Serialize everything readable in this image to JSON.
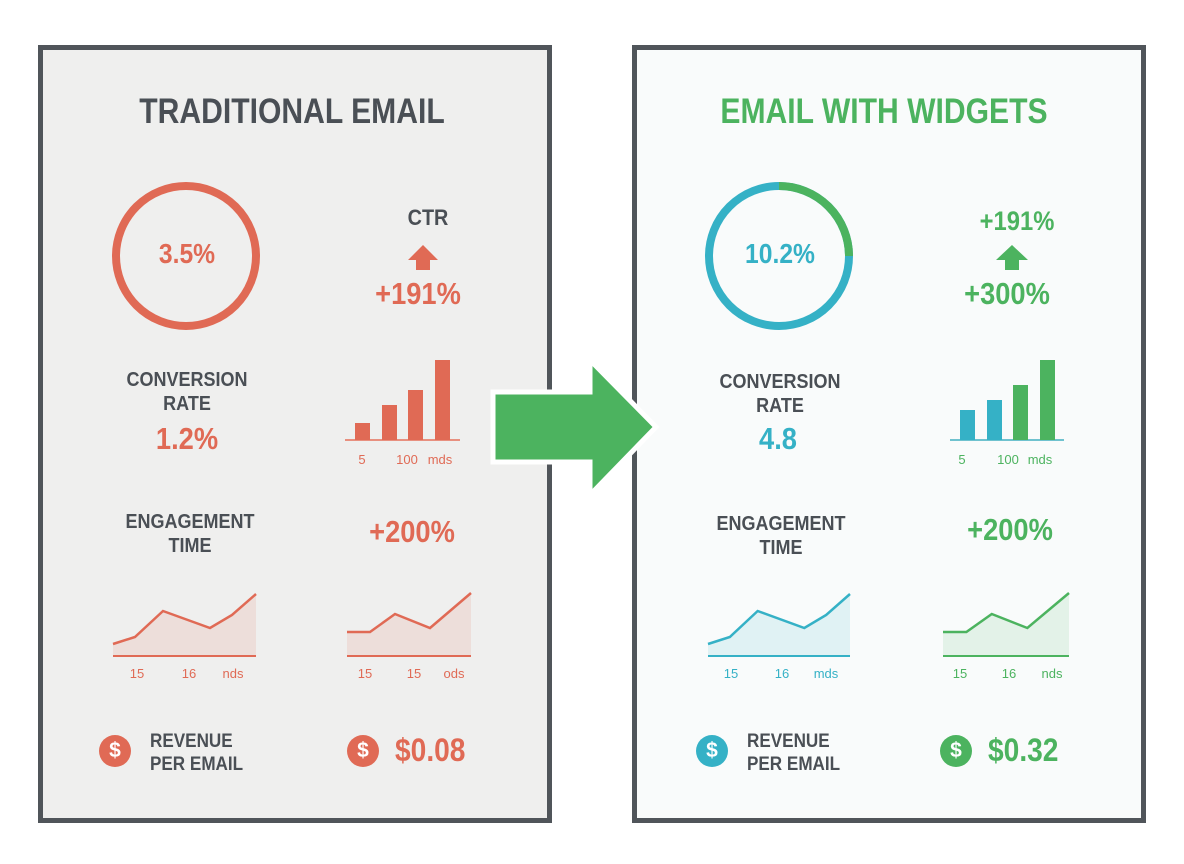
{
  "colors": {
    "red": "#e06a55",
    "teal": "#35b1c6",
    "green": "#4cb35f",
    "dark": "#4a4f55"
  },
  "left": {
    "title": "TRADITIONAL EMAIL",
    "ring_value": "3.5%",
    "ctr_label": "CTR",
    "ctr_change": "+191%",
    "conversion_label": [
      "CONVERSION",
      "RATE"
    ],
    "conversion_value": "1.2%",
    "engagement_label": [
      "ENGAGEMENT",
      "TIME"
    ],
    "engagement_change": "+200%",
    "revenue_label": [
      "REVENUE",
      "PER EMAIL"
    ],
    "revenue_value": "$0.08"
  },
  "right": {
    "title": "EMAIL WITH WIDGETS",
    "ring_value": "10.2%",
    "ctr_top": "+191%",
    "ctr_change": "+300%",
    "conversion_label": [
      "CONVERSION",
      "RATE"
    ],
    "conversion_value": "4.8",
    "engagement_label": [
      "ENGAGEMENT",
      "TIME"
    ],
    "engagement_change": "+200%",
    "revenue_label": [
      "REVENUE",
      "PER EMAIL"
    ],
    "revenue_value": "$0.32"
  },
  "chart_data": [
    {
      "type": "bar",
      "panel": "left",
      "values": [
        17,
        35,
        50,
        80
      ],
      "colors": [
        "#e06a55",
        "#e06a55",
        "#e06a55",
        "#e06a55"
      ],
      "tick_labels": [
        "5",
        "100",
        "mds"
      ]
    },
    {
      "type": "area",
      "panel": "left",
      "values": [
        12,
        19,
        45,
        28,
        41,
        62
      ],
      "tick_labels": [
        "15",
        "16",
        "nds"
      ]
    },
    {
      "type": "area",
      "panel": "left",
      "values": [
        24,
        24,
        42,
        28,
        63
      ],
      "tick_labels": [
        "15",
        "15",
        "ods"
      ]
    },
    {
      "type": "bar",
      "panel": "right",
      "values": [
        30,
        40,
        55,
        80
      ],
      "colors": [
        "#35b1c6",
        "#35b1c6",
        "#4cb35f",
        "#4cb35f"
      ],
      "tick_labels": [
        "5",
        "100",
        "mds"
      ]
    },
    {
      "type": "area",
      "panel": "right",
      "values": [
        12,
        19,
        45,
        28,
        41,
        62
      ],
      "tick_labels": [
        "15",
        "16",
        "mds"
      ]
    },
    {
      "type": "area",
      "panel": "right",
      "values": [
        24,
        24,
        42,
        28,
        63
      ],
      "tick_labels": [
        "15",
        "16",
        "nds"
      ]
    }
  ]
}
